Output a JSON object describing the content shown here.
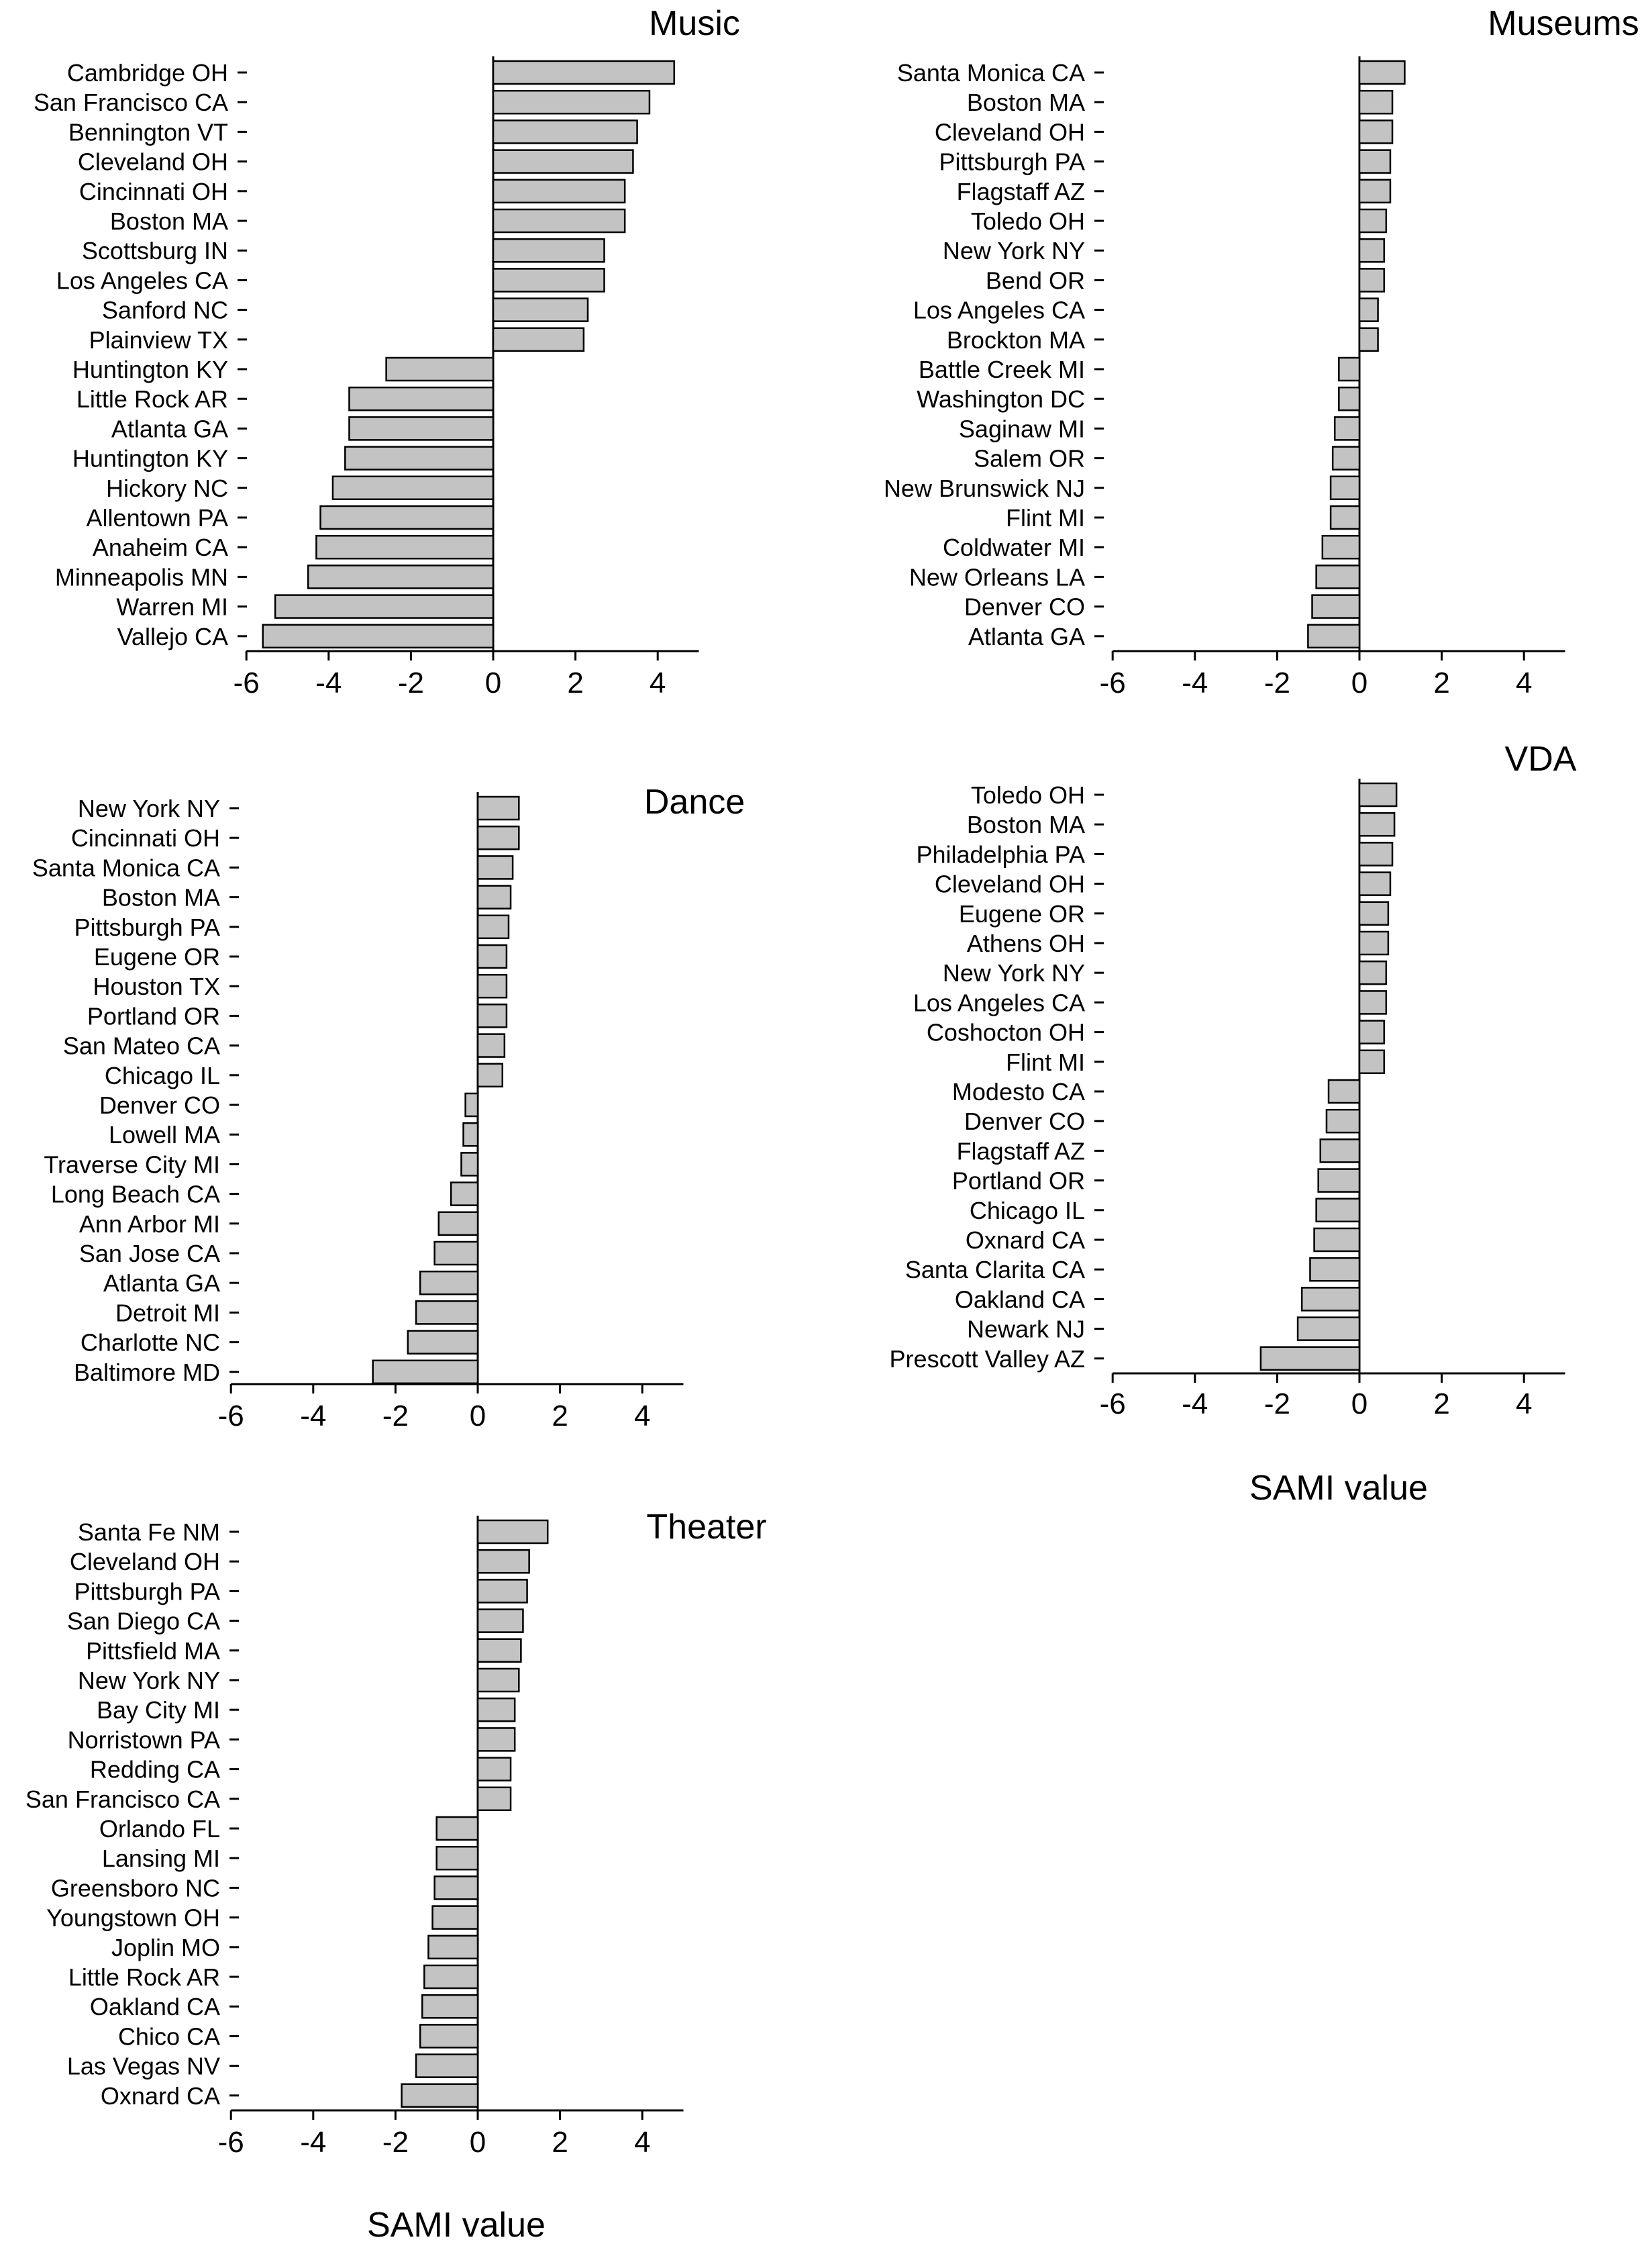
{
  "colors": {
    "bar_fill": "#c3c3c3",
    "bar_stroke": "#000000",
    "axis": "#000000",
    "background": "#ffffff"
  },
  "chart_data": [
    {
      "type": "bar",
      "orientation": "horizontal",
      "title": "Music",
      "xlabel": "",
      "xlim": [
        -6,
        5
      ],
      "xticks": [
        -6,
        -4,
        -2,
        0,
        2,
        4
      ],
      "categories": [
        "Cambridge OH",
        "San Francisco CA",
        "Bennington VT",
        "Cleveland OH",
        "Cincinnati OH",
        "Boston MA",
        "Scottsburg IN",
        "Los Angeles CA",
        "Sanford NC",
        "Plainview TX",
        "Huntington KY",
        "Little Rock AR",
        "Atlanta GA",
        "Huntington KY",
        "Hickory NC",
        "Allentown PA",
        "Anaheim CA",
        "Minneapolis MN",
        "Warren MI",
        "Vallejo CA"
      ],
      "values": [
        4.4,
        3.8,
        3.5,
        3.4,
        3.2,
        3.2,
        2.7,
        2.7,
        2.3,
        2.2,
        -2.6,
        -3.5,
        -3.5,
        -3.6,
        -3.9,
        -4.2,
        -4.3,
        -4.5,
        -5.3,
        -5.6
      ]
    },
    {
      "type": "bar",
      "orientation": "horizontal",
      "title": "Museums",
      "xlabel": "",
      "xlim": [
        -6,
        5
      ],
      "xticks": [
        -6,
        -4,
        -2,
        0,
        2,
        4
      ],
      "categories": [
        "Santa Monica CA",
        "Boston MA",
        "Cleveland OH",
        "Pittsburgh PA",
        "Flagstaff AZ",
        "Toledo OH",
        "New York NY",
        "Bend OR",
        "Los Angeles CA",
        "Brockton MA",
        "Battle Creek MI",
        "Washington DC",
        "Saginaw MI",
        "Salem OR",
        "New Brunswick NJ",
        "Flint MI",
        "Coldwater MI",
        "New Orleans LA",
        "Denver CO",
        "Atlanta GA"
      ],
      "values": [
        1.1,
        0.8,
        0.8,
        0.75,
        0.75,
        0.65,
        0.6,
        0.6,
        0.45,
        0.45,
        -0.5,
        -0.5,
        -0.6,
        -0.65,
        -0.7,
        -0.7,
        -0.9,
        -1.05,
        -1.15,
        -1.25
      ]
    },
    {
      "type": "bar",
      "orientation": "horizontal",
      "title": "Dance",
      "xlabel": "",
      "xlim": [
        -6,
        5
      ],
      "xticks": [
        -6,
        -4,
        -2,
        0,
        2,
        4
      ],
      "categories": [
        "New York NY",
        "Cincinnati OH",
        "Santa Monica CA",
        "Boston MA",
        "Pittsburgh PA",
        "Eugene OR",
        "Houston TX",
        "Portland OR",
        "San Mateo CA",
        "Chicago IL",
        "Denver CO",
        "Lowell MA",
        "Traverse City MI",
        "Long Beach CA",
        "Ann Arbor MI",
        "San Jose CA",
        "Atlanta GA",
        "Detroit MI",
        "Charlotte NC",
        "Baltimore MD"
      ],
      "values": [
        1.0,
        1.0,
        0.85,
        0.8,
        0.75,
        0.7,
        0.7,
        0.7,
        0.65,
        0.6,
        -0.3,
        -0.35,
        -0.4,
        -0.65,
        -0.95,
        -1.05,
        -1.4,
        -1.5,
        -1.7,
        -2.55
      ]
    },
    {
      "type": "bar",
      "orientation": "horizontal",
      "title": "VDA",
      "xlabel": "SAMI value",
      "xlim": [
        -6,
        5
      ],
      "xticks": [
        -6,
        -4,
        -2,
        0,
        2,
        4
      ],
      "categories": [
        "Toledo OH",
        "Boston MA",
        "Philadelphia PA",
        "Cleveland OH",
        "Eugene OR",
        "Athens OH",
        "New York NY",
        "Los Angeles CA",
        "Coshocton OH",
        "Flint MI",
        "Modesto CA",
        "Denver CO",
        "Flagstaff AZ",
        "Portland OR",
        "Chicago IL",
        "Oxnard CA",
        "Santa Clarita CA",
        "Oakland CA",
        "Newark NJ",
        "Prescott Valley AZ"
      ],
      "values": [
        0.9,
        0.85,
        0.8,
        0.75,
        0.7,
        0.7,
        0.65,
        0.65,
        0.6,
        0.6,
        -0.75,
        -0.8,
        -0.95,
        -1.0,
        -1.05,
        -1.1,
        -1.2,
        -1.4,
        -1.5,
        -2.4
      ]
    },
    {
      "type": "bar",
      "orientation": "horizontal",
      "title": "Theater",
      "xlabel": "SAMI value",
      "xlim": [
        -6,
        5
      ],
      "xticks": [
        -6,
        -4,
        -2,
        0,
        2,
        4
      ],
      "categories": [
        "Santa Fe NM",
        "Cleveland OH",
        "Pittsburgh PA",
        "San Diego CA",
        "Pittsfield MA",
        "New York NY",
        "Bay City MI",
        "Norristown PA",
        "Redding CA",
        "San Francisco CA",
        "Orlando FL",
        "Lansing MI",
        "Greensboro NC",
        "Youngstown OH",
        "Joplin MO",
        "Little Rock AR",
        "Oakland CA",
        "Chico CA",
        "Las Vegas NV",
        "Oxnard CA"
      ],
      "values": [
        1.7,
        1.25,
        1.2,
        1.1,
        1.05,
        1.0,
        0.9,
        0.9,
        0.8,
        0.8,
        -1.0,
        -1.0,
        -1.05,
        -1.1,
        -1.2,
        -1.3,
        -1.35,
        -1.4,
        -1.5,
        -1.85
      ]
    }
  ]
}
